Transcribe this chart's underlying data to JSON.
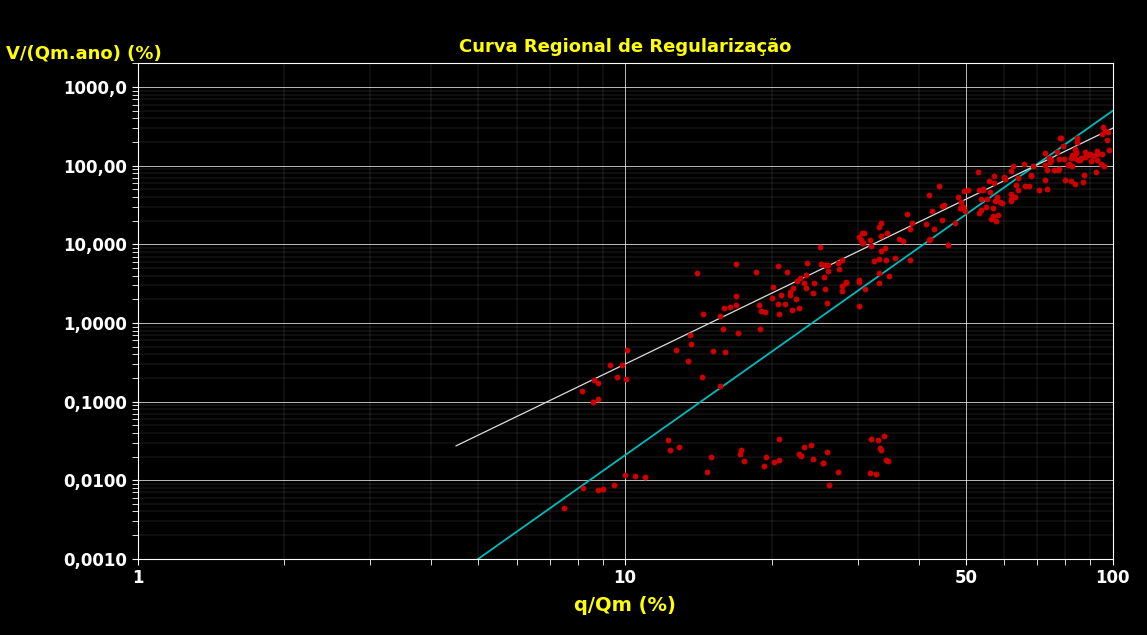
{
  "title": "Curva Regional de Regularização",
  "title_color": "#FFFF00",
  "xlabel": "q/Qm (%)",
  "ylabel": "V/(Qm.ano) (%)",
  "xlabel_color": "#FFFF00",
  "ylabel_color": "#FFFF00",
  "background_color": "#000000",
  "plot_bg_color": "#000000",
  "grid_color": "#FFFFFF",
  "tick_color": "#FFFFFF",
  "dot_color": "#CC0000",
  "line_color": "#00BBBB",
  "line2_color": "#DDDDDD",
  "xlim": [
    1,
    100
  ],
  "ylim": [
    0.001,
    2000
  ],
  "xtick_labels": [
    "1",
    "10",
    "50",
    "100"
  ],
  "ytick_labels": [
    "1000,0",
    "100,00",
    "10,000",
    "1,0000",
    "0,1000",
    "0,0100",
    "0,0010"
  ],
  "scatter_seed": 7
}
